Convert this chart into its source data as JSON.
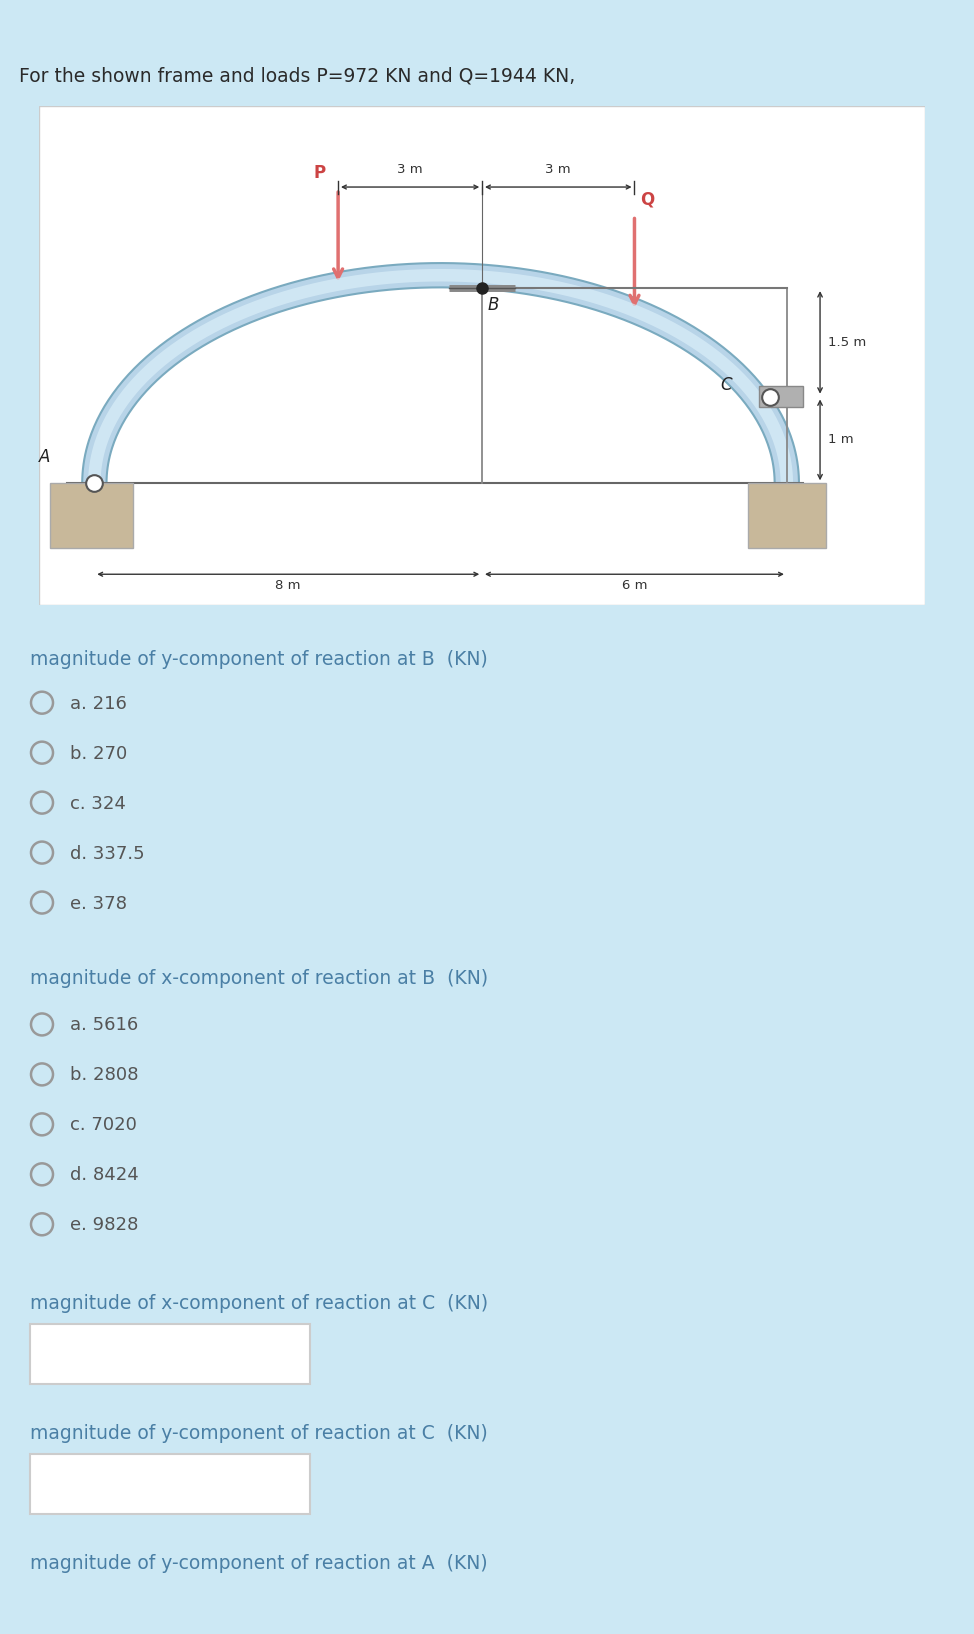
{
  "title": "For the shown frame and loads P=972 KN and Q=1944 KN,",
  "bg_color": "#cce8f4",
  "header_color": "#2a5f8f",
  "diagram_bg": "#ffffff",
  "text_color": "#4a7fa5",
  "dark_text": "#555555",
  "question1": "magnitude of y-component of reaction at B  (KN)",
  "q1_options": [
    "a. 216",
    "b. 270",
    "c. 324",
    "d. 337.5",
    "e. 378"
  ],
  "question2": "magnitude of x-component of reaction at B  (KN)",
  "q2_options": [
    "a. 5616",
    "b. 2808",
    "c. 7020",
    "d. 8424",
    "e. 9828"
  ],
  "question3": "magnitude of x-component of reaction at C  (KN)",
  "question4": "magnitude of y-component of reaction at C  (KN)",
  "question5": "magnitude of y-component of reaction at A  (KN)",
  "arrow_color": "#e07070",
  "load_color": "#cc4444",
  "arch_fill": "#b8d4e8",
  "arch_edge": "#7aaabf",
  "arch_highlight": "#daeef8",
  "support_color": "#c8b89a",
  "support_edge": "#aaaaaa",
  "pin_color": "#ffffff",
  "pin_edge": "#555555"
}
